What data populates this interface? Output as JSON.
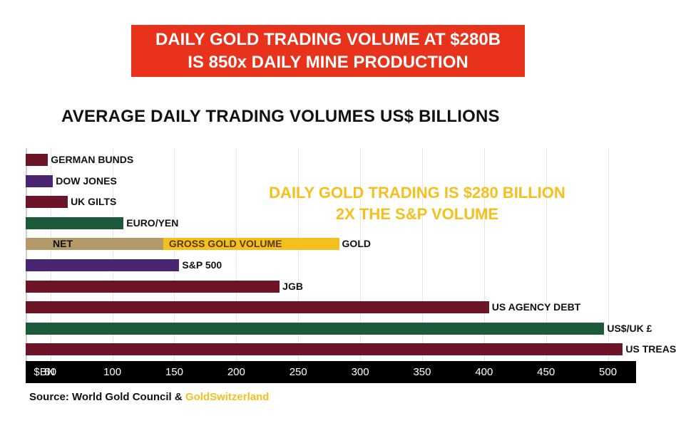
{
  "header": {
    "banner_line1": "DAILY GOLD TRADING VOLUME AT $280B",
    "banner_line2": "IS 850x DAILY MINE PRODUCTION"
  },
  "colors": {
    "banner": "#e8321c",
    "maroon": "#6e1428",
    "green": "#1c5a3c",
    "purple": "#4b2670",
    "tan": "#b49a6a",
    "gold": "#f3c020"
  },
  "chart_data": {
    "type": "bar",
    "orientation": "horizontal",
    "title": "AVERAGE DAILY TRADING VOLUMES US$ BILLIONS",
    "annotation_line1": "DAILY GOLD TRADING IS $280 BILLION",
    "annotation_line2": "2X THE S&P VOLUME",
    "x_axis_unit": "$BN",
    "xlim": [
      30,
      525
    ],
    "x_ticks": [
      50,
      100,
      150,
      200,
      250,
      300,
      350,
      400,
      450,
      500
    ],
    "grid": true,
    "bars": [
      {
        "label": "GERMAN BUNDS",
        "value": 48,
        "color": "maroon"
      },
      {
        "label": "DOW JONES",
        "value": 52,
        "color": "purple"
      },
      {
        "label": "UK GILTS",
        "value": 64,
        "color": "maroon"
      },
      {
        "label": "EURO/YEN",
        "value": 109,
        "color": "green"
      },
      {
        "label": "GOLD",
        "value": 283,
        "color": "gold",
        "segments": [
          {
            "name": "NET",
            "from": 30,
            "to": 141,
            "color": "tan"
          },
          {
            "name": "GROSS GOLD VOLUME",
            "from": 141,
            "to": 283,
            "color": "gold"
          }
        ]
      },
      {
        "label": "S&P 500",
        "value": 154,
        "color": "purple"
      },
      {
        "label": "JGB",
        "value": 235,
        "color": "maroon"
      },
      {
        "label": "US AGENCY DEBT",
        "value": 404,
        "color": "maroon"
      },
      {
        "label": "US$/UK £",
        "value": 497,
        "color": "green"
      },
      {
        "label": "US TREAS.",
        "value": 512,
        "color": "maroon"
      }
    ]
  },
  "footer": {
    "source_prefix": "Source: World Gold Council & ",
    "source_brand": "GoldSwitzerland"
  }
}
